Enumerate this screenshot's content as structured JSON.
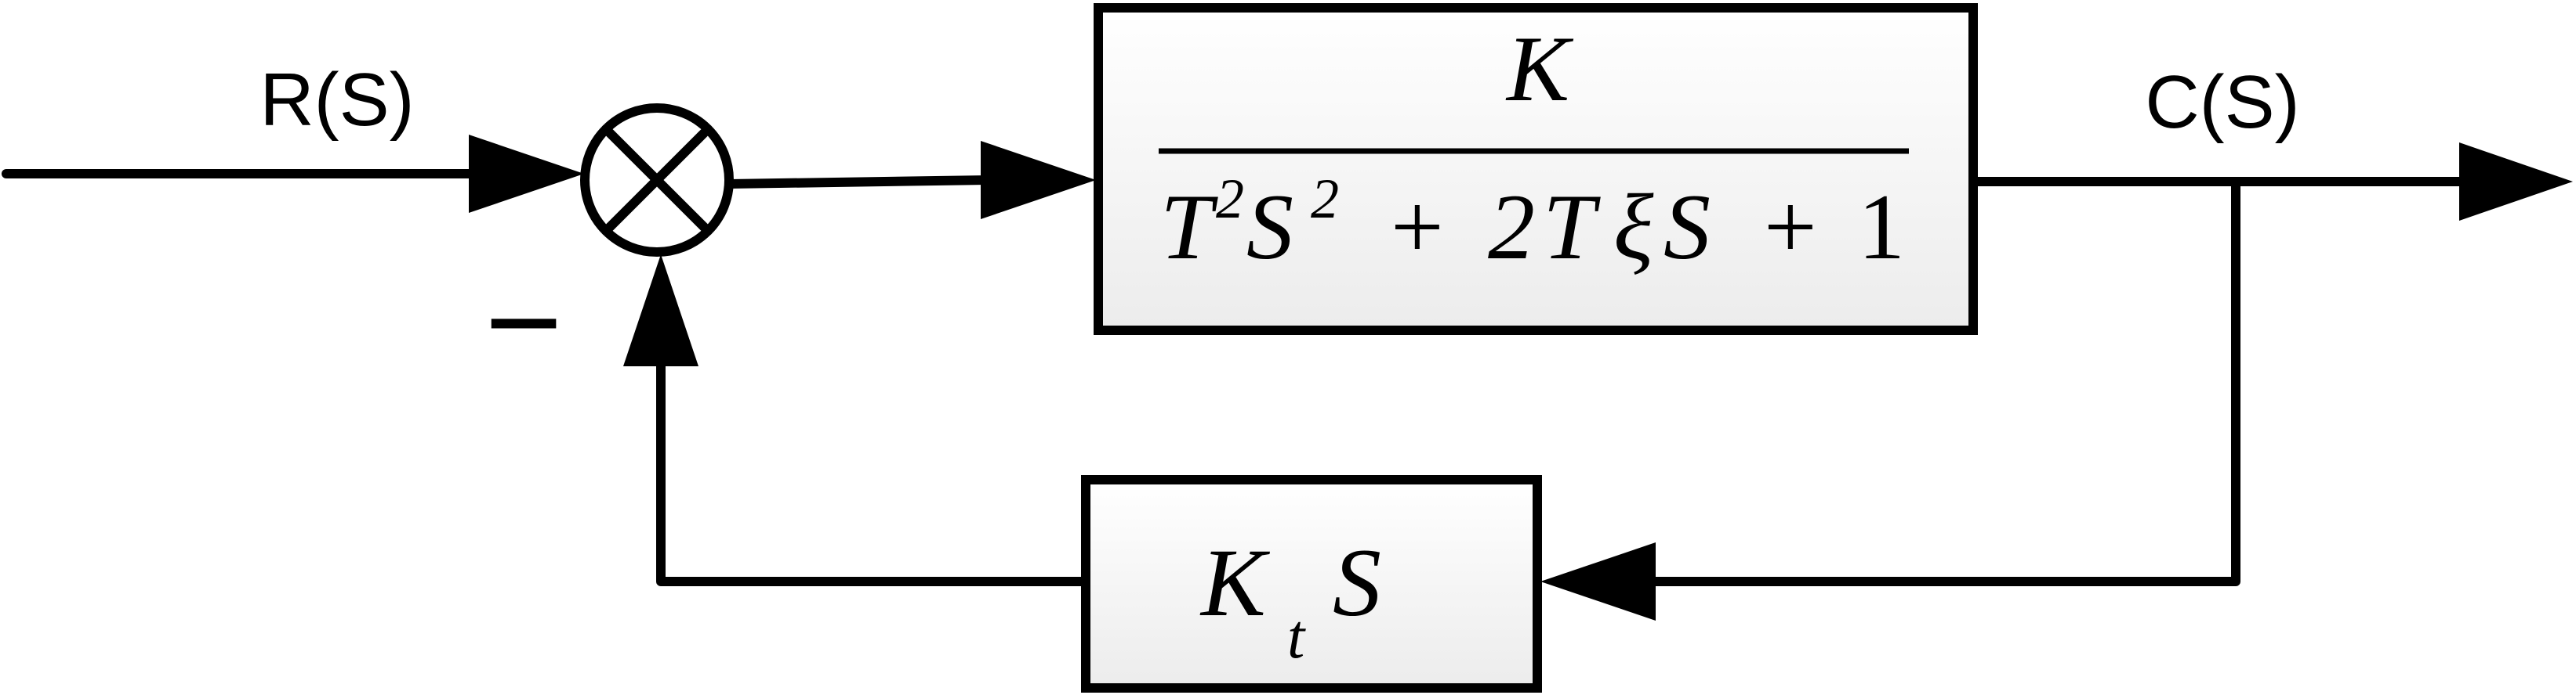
{
  "input_signal": {
    "label": "R(S)"
  },
  "output_signal": {
    "label": "C(S)"
  },
  "summing_junction": {
    "feedback_sign": "−"
  },
  "forward_block": {
    "numerator": {
      "gain": "K"
    },
    "denominator": {
      "t": "T",
      "t_exp": "2",
      "s": "S",
      "s_exp": "2",
      "plus_1": "+",
      "coef": "2",
      "t2": "T",
      "xi": "ξ",
      "s2": "S",
      "plus_2": "+",
      "one": "1"
    }
  },
  "feedback_block": {
    "gain": "K",
    "subscript": "t",
    "s": "S"
  },
  "colors": {
    "line": "#000000",
    "block_fill_top": "#ffffff",
    "block_fill_bottom": "#ececec"
  }
}
